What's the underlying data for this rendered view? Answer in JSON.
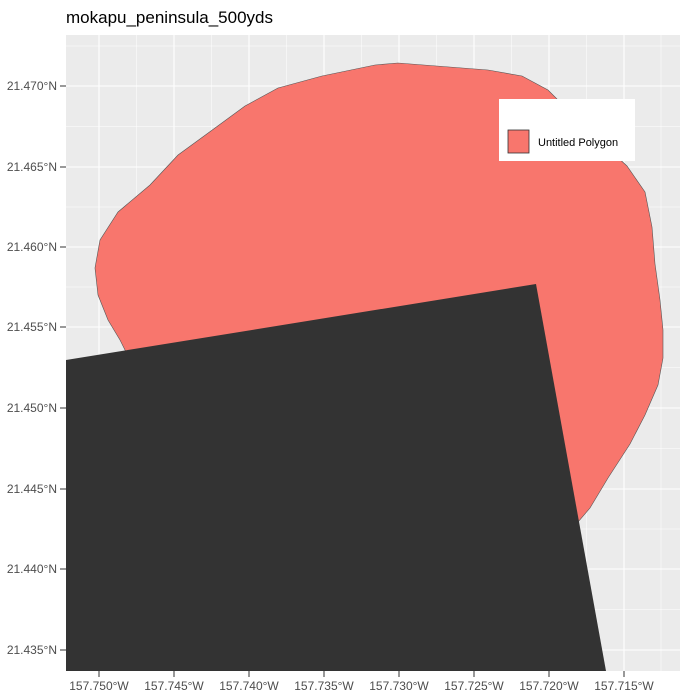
{
  "title": "mokapu_peninsula_500yds",
  "map": {
    "background_color": "#ebebeb",
    "grid_color": "#ffffff",
    "polygon_fill": "#f8766d",
    "polygon_stroke": "#555555",
    "overlay_fill": "#333333",
    "y_ticks": [
      "21.470°N",
      "21.465°N",
      "21.460°N",
      "21.455°N",
      "21.450°N",
      "21.445°N",
      "21.440°N",
      "21.435°N"
    ],
    "x_ticks": [
      "157.750°W",
      "157.745°W",
      "157.740°W",
      "157.735°W",
      "157.730°W",
      "157.725°W",
      "157.720°W",
      "157.715°W"
    ]
  },
  "legend": {
    "label": "Untitled Polygon",
    "placement": "top-right"
  }
}
